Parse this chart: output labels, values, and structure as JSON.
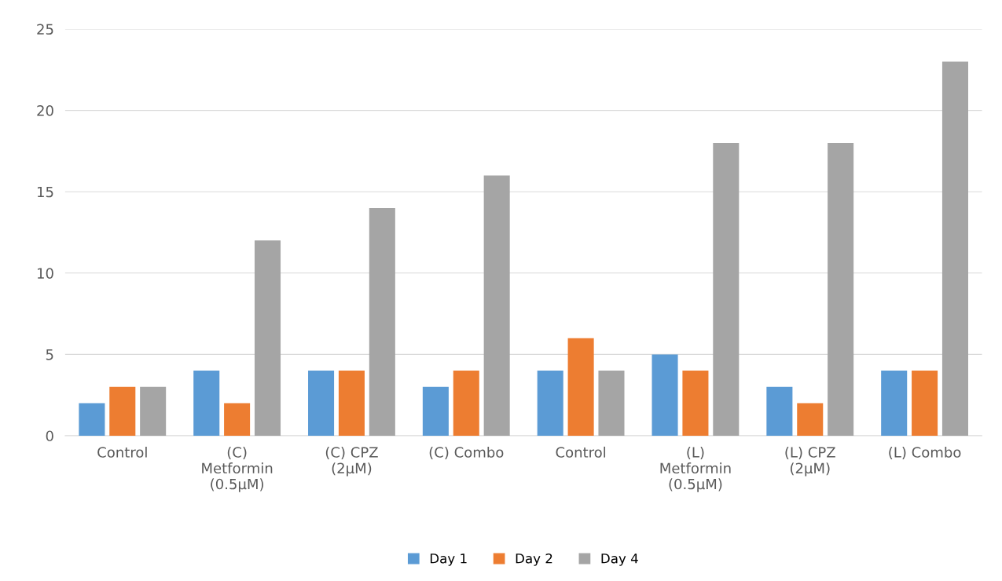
{
  "chart_data": {
    "type": "bar",
    "categories": [
      "Control",
      "(C)\nMetformin\n(0.5µM)",
      "(C) CPZ\n(2µM)",
      "(C) Combo",
      "Control",
      "(L)\nMetformin\n(0.5µM)",
      "(L) CPZ\n(2µM)",
      "(L) Combo"
    ],
    "series": [
      {
        "name": "Day 1",
        "color": "#5b9bd5",
        "values": [
          2,
          4,
          4,
          3,
          4,
          5,
          3,
          4
        ]
      },
      {
        "name": "Day 2",
        "color": "#ed7d31",
        "values": [
          3,
          2,
          4,
          4,
          6,
          4,
          2,
          4
        ]
      },
      {
        "name": "Day 4",
        "color": "#a5a5a5",
        "values": [
          3,
          12,
          14,
          16,
          4,
          18,
          18,
          23
        ]
      }
    ],
    "ylim": [
      0,
      25
    ],
    "yticks": [
      0,
      5,
      10,
      15,
      20,
      25
    ],
    "grid": "y",
    "legend": "bottom"
  }
}
